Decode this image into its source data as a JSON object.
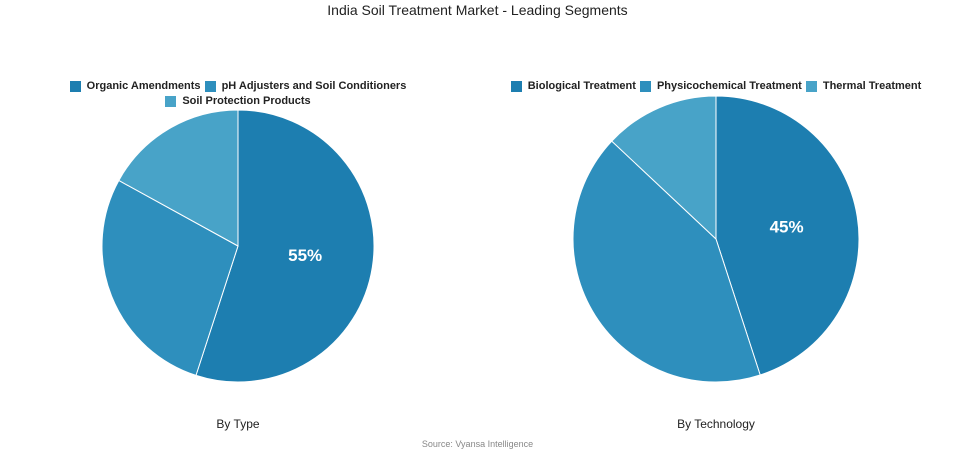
{
  "title": "India Soil Treatment Market - Leading Segments",
  "source": "Source: Vyansa Intelligence",
  "chart_data": [
    {
      "type": "pie",
      "subtitle": "By Type",
      "categories": [
        "Organic Amendments",
        "pH Adjusters and Soil Conditioners",
        "Soil Protection Products"
      ],
      "values": [
        55,
        28,
        17
      ],
      "value_labels": [
        "55%",
        null,
        null
      ],
      "colors": [
        "#1d7eb0",
        "#2e8fbd",
        "#48a3c8"
      ]
    },
    {
      "type": "pie",
      "subtitle": "By Technology",
      "categories": [
        "Biological Treatment",
        "Physicochemical Treatment",
        "Thermal Treatment"
      ],
      "values": [
        45,
        42,
        13
      ],
      "value_labels": [
        "45%",
        null,
        null
      ],
      "colors": [
        "#1d7eb0",
        "#2e8fbd",
        "#48a3c8"
      ]
    }
  ]
}
